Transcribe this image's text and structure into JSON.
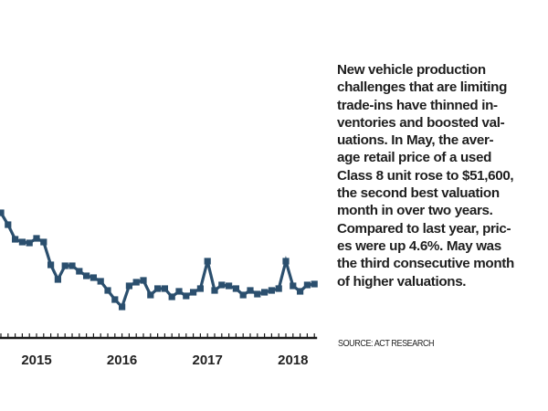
{
  "chart_data": {
    "type": "line",
    "title": "",
    "xlabel": "",
    "ylabel": "",
    "value_scale": "relative (no y-axis shown)",
    "x_tick_labels": [
      "2015",
      "2016",
      "2017",
      "2018"
    ],
    "x_tick_months": [
      5,
      17,
      29,
      41
    ],
    "minor_ticks": "monthly",
    "grid": false,
    "legend": "none",
    "series": [
      {
        "name": "Average retail price, used Class 8",
        "color": "#2b4f6e",
        "x_months": [
          0,
          1,
          2,
          3,
          4,
          5,
          6,
          7,
          8,
          9,
          10,
          11,
          12,
          13,
          14,
          15,
          16,
          17,
          18,
          19,
          20,
          21,
          22,
          23,
          24,
          25,
          26,
          27,
          28,
          29,
          30,
          31,
          32,
          33,
          34,
          35,
          36,
          37,
          38,
          39,
          40,
          41,
          42,
          43,
          44
        ],
        "values": [
          127,
          114,
          98,
          95,
          94,
          99,
          95,
          70,
          54,
          69,
          69,
          63,
          58,
          56,
          52,
          42,
          32,
          24,
          47,
          51,
          53,
          37,
          44,
          44,
          35,
          41,
          36,
          40,
          44,
          74,
          42,
          48,
          47,
          44,
          37,
          42,
          38,
          40,
          42,
          44,
          74,
          47,
          41,
          48,
          49
        ]
      }
    ],
    "ylim": [
      0,
      150
    ]
  },
  "caption": {
    "text": "New vehicle production\nchallenges that are limiting\ntrade-ins have thinned in-\nventories and boosted val-\nuations. In May, the aver-\nage retail price of a used\nClass 8 unit rose to $51,600,\nthe second best valuation\nmonth in over two years.\nCompared to last year, pric-\nes were up 4.6%. May was\nthe third consecutive month\nof higher valuations."
  },
  "source": "SOURCE: ACT RESEARCH"
}
